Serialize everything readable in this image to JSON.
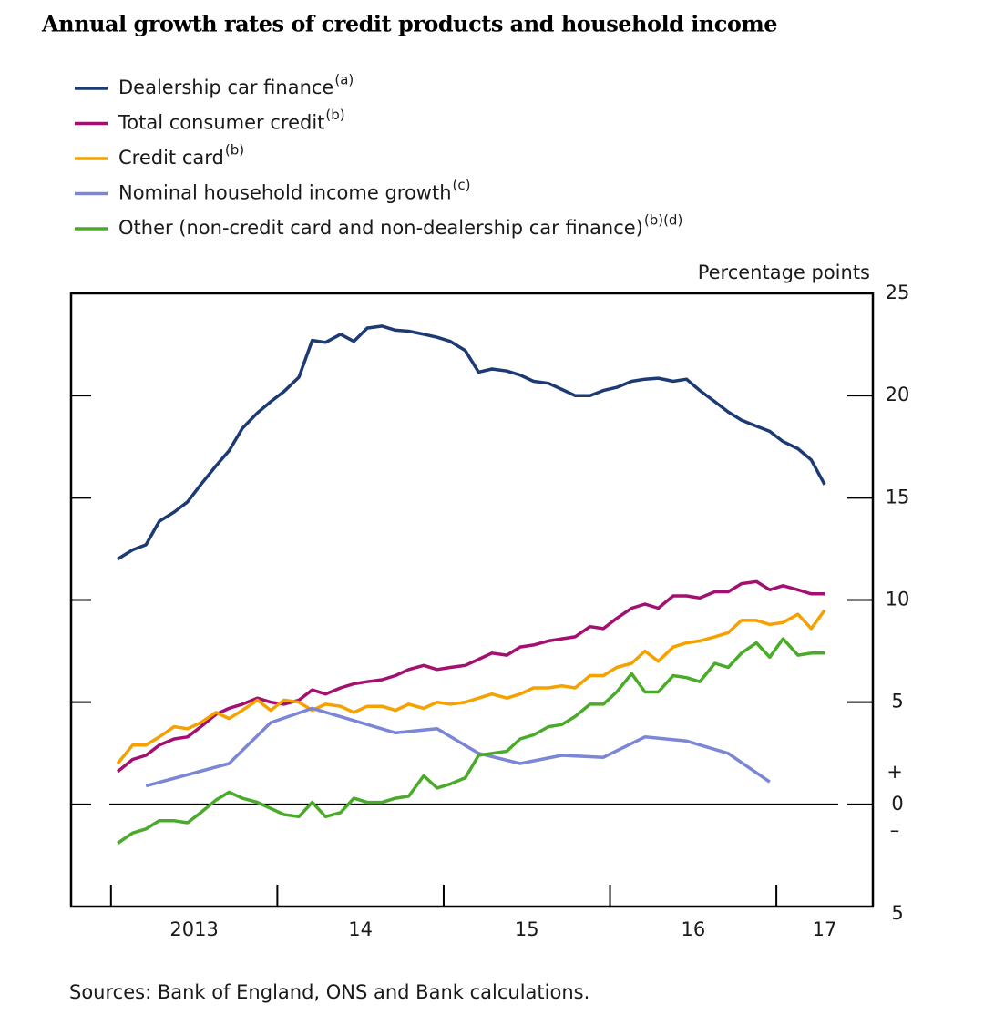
{
  "chart_data": {
    "type": "line",
    "title": "Annual growth rates of credit products and household income",
    "y_label": "Percentage points",
    "source": "Sources:  Bank of England, ONS and Bank calculations.",
    "zero_signs": [
      "+",
      "–"
    ],
    "x": [
      2013.04,
      2013.13,
      2013.21,
      2013.29,
      2013.38,
      2013.46,
      2013.54,
      2013.63,
      2013.71,
      2013.79,
      2013.88,
      2013.96,
      2014.04,
      2014.13,
      2014.21,
      2014.29,
      2014.38,
      2014.46,
      2014.54,
      2014.63,
      2014.71,
      2014.79,
      2014.88,
      2014.96,
      2015.04,
      2015.13,
      2015.21,
      2015.29,
      2015.38,
      2015.46,
      2015.54,
      2015.63,
      2015.71,
      2015.79,
      2015.88,
      2015.96,
      2016.04,
      2016.13,
      2016.21,
      2016.29,
      2016.38,
      2016.46,
      2016.54,
      2016.63,
      2016.71,
      2016.79,
      2016.88,
      2016.96,
      2017.04,
      2017.13,
      2017.21,
      2017.29
    ],
    "xlim": [
      2012.76,
      2017.58
    ],
    "xticks": [
      {
        "value": 2013,
        "label": "2013"
      },
      {
        "value": 2014,
        "label": "14"
      },
      {
        "value": 2015,
        "label": "15"
      },
      {
        "value": 2016,
        "label": "16"
      },
      {
        "value": 2017,
        "label": "17"
      }
    ],
    "ylim": [
      -5,
      25
    ],
    "yticks": [
      {
        "value": -5,
        "label": "5"
      },
      0,
      5,
      10,
      15,
      20,
      25
    ],
    "series": [
      {
        "name": "Dealership car finance",
        "superscript": "(a)",
        "color": "#1c3a73",
        "values": [
          12.0,
          12.45,
          12.7,
          13.85,
          14.3,
          14.8,
          15.65,
          16.55,
          17.3,
          18.4,
          19.15,
          19.7,
          20.2,
          20.9,
          22.7,
          22.6,
          23.0,
          22.65,
          23.3,
          23.4,
          23.2,
          23.15,
          23.0,
          22.85,
          22.65,
          22.2,
          21.15,
          21.3,
          21.2,
          21.0,
          20.7,
          20.6,
          20.3,
          20.0,
          20.0,
          20.25,
          20.4,
          20.7,
          20.8,
          20.85,
          20.7,
          20.8,
          20.25,
          19.7,
          19.2,
          18.8,
          18.5,
          18.25,
          17.75,
          17.4,
          16.85,
          15.65
        ]
      },
      {
        "name": "Total consumer credit",
        "superscript": "(b)",
        "color": "#a3106f",
        "values": [
          1.6,
          2.2,
          2.4,
          2.9,
          3.2,
          3.3,
          3.8,
          4.4,
          4.7,
          4.9,
          5.2,
          5.0,
          4.9,
          5.1,
          5.6,
          5.4,
          5.7,
          5.9,
          6.0,
          6.1,
          6.3,
          6.6,
          6.8,
          6.6,
          6.7,
          6.8,
          7.1,
          7.4,
          7.3,
          7.7,
          7.8,
          8.0,
          8.1,
          8.2,
          8.7,
          8.6,
          9.1,
          9.6,
          9.8,
          9.6,
          10.2,
          10.2,
          10.1,
          10.4,
          10.4,
          10.8,
          10.9,
          10.5,
          10.7,
          10.5,
          10.3,
          10.3
        ]
      },
      {
        "name": "Credit card",
        "superscript": "(b)",
        "color": "#f5a100",
        "values": [
          2.0,
          2.9,
          2.9,
          3.3,
          3.8,
          3.7,
          4.0,
          4.5,
          4.2,
          4.6,
          5.1,
          4.6,
          5.1,
          5.0,
          4.6,
          4.9,
          4.8,
          4.5,
          4.8,
          4.8,
          4.6,
          4.9,
          4.7,
          5.0,
          4.9,
          5.0,
          5.2,
          5.4,
          5.2,
          5.4,
          5.7,
          5.7,
          5.8,
          5.7,
          6.3,
          6.3,
          6.7,
          6.9,
          7.5,
          7.0,
          7.7,
          7.9,
          8.0,
          8.2,
          8.4,
          9.0,
          9.0,
          8.8,
          8.9,
          9.3,
          8.6,
          9.5
        ]
      },
      {
        "name": "Nominal household income growth",
        "superscript": "(c)",
        "color": "#7b86d6",
        "x": [
          2013.21,
          2013.71,
          2013.96,
          2014.21,
          2014.71,
          2014.96,
          2015.21,
          2015.46,
          2015.71,
          2015.96,
          2016.21,
          2016.46,
          2016.71,
          2016.96
        ],
        "values": [
          0.9,
          2.0,
          4.0,
          4.7,
          3.5,
          3.7,
          2.5,
          2.0,
          2.4,
          2.3,
          3.3,
          3.1,
          2.5,
          1.1
        ]
      },
      {
        "name": "Other (non-credit card and non-dealership car finance)",
        "superscript": "(b)(d)",
        "color": "#4aab2a",
        "values": [
          -1.9,
          -1.4,
          -1.2,
          -0.8,
          -0.8,
          -0.9,
          -0.4,
          0.2,
          0.6,
          0.3,
          0.1,
          -0.2,
          -0.5,
          -0.6,
          0.1,
          -0.6,
          -0.4,
          0.3,
          0.1,
          0.1,
          0.3,
          0.4,
          1.4,
          0.8,
          1.0,
          1.3,
          2.4,
          2.5,
          2.6,
          3.2,
          3.4,
          3.8,
          3.9,
          4.3,
          4.9,
          4.9,
          5.5,
          6.4,
          5.5,
          5.5,
          6.3,
          6.2,
          6.0,
          6.9,
          6.7,
          7.4,
          7.9,
          7.2,
          8.1,
          7.3,
          7.4,
          7.4
        ]
      }
    ]
  }
}
